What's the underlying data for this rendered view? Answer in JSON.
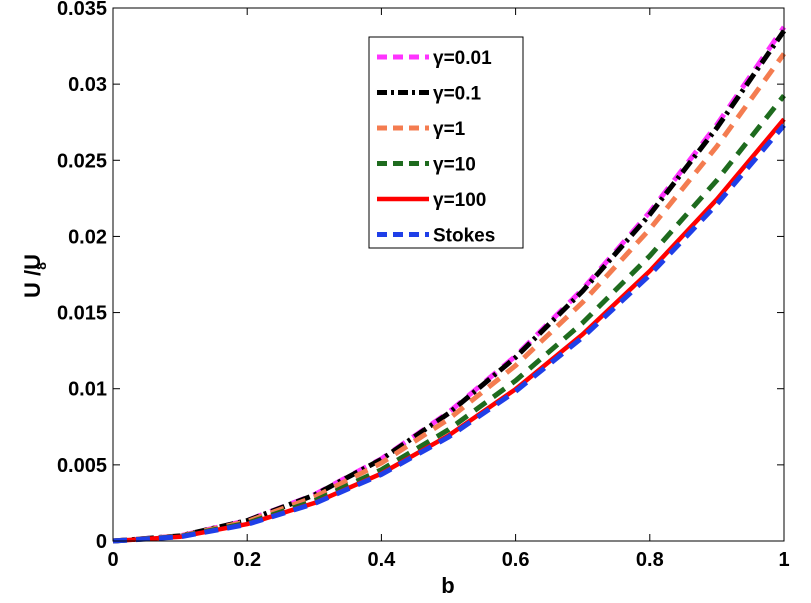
{
  "chart_data": {
    "type": "line",
    "title": "",
    "xlabel": "b",
    "ylabel": "U /U",
    "ylabel_subscript": "8",
    "xlim": [
      0,
      1
    ],
    "ylim": [
      0,
      0.035
    ],
    "x_ticks": [
      0,
      0.2,
      0.4,
      0.6,
      0.8,
      1
    ],
    "x_tick_labels": [
      "0",
      "0.2",
      "0.4",
      "0.6",
      "0.8",
      "1"
    ],
    "y_ticks": [
      0,
      0.005,
      0.01,
      0.015,
      0.02,
      0.025,
      0.03,
      0.035
    ],
    "y_tick_labels": [
      "0",
      "0.005",
      "0.01",
      "0.015",
      "0.02",
      "0.025",
      "0.03",
      "0.035"
    ],
    "grid": false,
    "legend_position": "top-center",
    "x": [
      0,
      0.1,
      0.2,
      0.3,
      0.4,
      0.5,
      0.6,
      0.7,
      0.8,
      0.9,
      1.0
    ],
    "series": [
      {
        "name": "γ=0.01",
        "color": "#ff33ff",
        "dash": "dashed",
        "values": [
          0,
          0.00034,
          0.00135,
          0.00304,
          0.0054,
          0.00844,
          0.01215,
          0.01654,
          0.0216,
          0.02734,
          0.03375
        ]
      },
      {
        "name": "γ=0.1",
        "color": "#000000",
        "dash": "dashdot",
        "values": [
          0,
          0.000335,
          0.00134,
          0.003015,
          0.00536,
          0.008375,
          0.01206,
          0.016415,
          0.02144,
          0.027135,
          0.0335
        ]
      },
      {
        "name": "γ=1",
        "color": "#f47c50",
        "dash": "dashed",
        "values": [
          0,
          0.00032,
          0.00128,
          0.00288,
          0.00512,
          0.008,
          0.01152,
          0.01568,
          0.02048,
          0.02592,
          0.032
        ]
      },
      {
        "name": "γ=10",
        "color": "#1e6b1e",
        "dash": "dashed",
        "values": [
          0,
          0.000293,
          0.00117,
          0.00263,
          0.00468,
          0.00731,
          0.01053,
          0.01433,
          0.01872,
          0.02369,
          0.02925
        ]
      },
      {
        "name": "γ=100",
        "color": "#ff0000",
        "dash": "solid",
        "values": [
          0,
          0.000277,
          0.00111,
          0.002493,
          0.00443,
          0.006925,
          0.00997,
          0.013573,
          0.01773,
          0.022437,
          0.0277
        ]
      },
      {
        "name": "Stokes",
        "color": "#1f3fe8",
        "dash": "dashed",
        "values": [
          0,
          0.000273,
          0.00109,
          0.002457,
          0.00437,
          0.006825,
          0.00983,
          0.013377,
          0.01747,
          0.022113,
          0.0273
        ]
      }
    ]
  }
}
